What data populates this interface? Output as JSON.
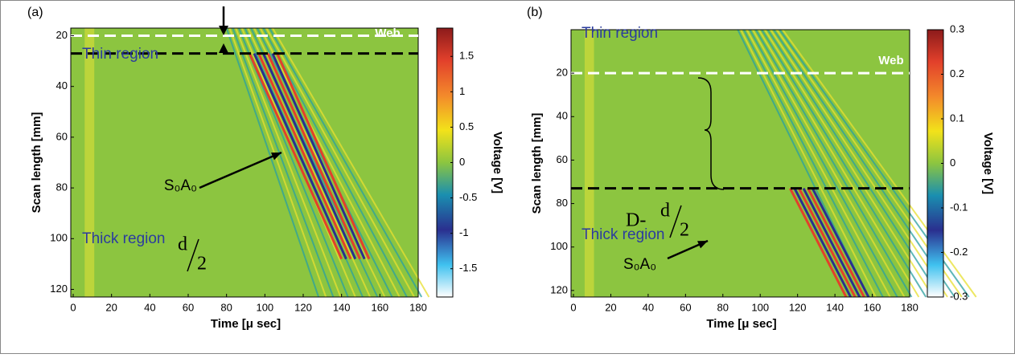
{
  "chart_data": [
    {
      "type": "heatmap",
      "panel_label": "(a)",
      "xlabel": "Time [μ sec]",
      "ylabel": "Scan length [mm]",
      "xlim": [
        0,
        180
      ],
      "xticks": [
        0,
        20,
        40,
        60,
        80,
        100,
        120,
        140,
        160,
        180
      ],
      "ylim": [
        123,
        17
      ],
      "yticks": [
        20,
        40,
        60,
        80,
        100,
        120
      ],
      "colorbar": {
        "label": "Voltage [V]",
        "lim": [
          -1.9,
          1.9
        ],
        "ticks": [
          1.5,
          1,
          0.5,
          0,
          -0.5,
          -1,
          -1.5
        ]
      },
      "annotations": {
        "thin": "Thin region",
        "thick": "Thick region",
        "web": "Web",
        "mode": "S₀A₀",
        "numerator": "d",
        "denominator": "2"
      },
      "lines": [
        {
          "y": 20,
          "color": "#ffffff"
        },
        {
          "y": 27,
          "color": "#000000"
        }
      ]
    },
    {
      "type": "heatmap",
      "panel_label": "(b)",
      "xlabel": "Time [μ sec]",
      "ylabel": "Scan length [mm]",
      "xlim": [
        0,
        180
      ],
      "xticks": [
        0,
        20,
        40,
        60,
        80,
        100,
        120,
        140,
        160,
        180
      ],
      "ylim": [
        123,
        0
      ],
      "yticks": [
        20,
        40,
        60,
        80,
        100,
        120
      ],
      "colorbar": {
        "label": "Voltage [V]",
        "lim": [
          -0.3,
          0.3
        ],
        "ticks": [
          0.3,
          0.2,
          0.1,
          0,
          -0.1,
          -0.2,
          -0.3
        ]
      },
      "annotations": {
        "thin": "Thin region",
        "thick": "Thick region",
        "web": "Web",
        "mode": "S₀A₀",
        "prefix": "D-",
        "numerator": "d",
        "denominator": "2"
      },
      "lines": [
        {
          "y": 20,
          "color": "#ffffff"
        },
        {
          "y": 73,
          "color": "#000000"
        }
      ]
    }
  ]
}
